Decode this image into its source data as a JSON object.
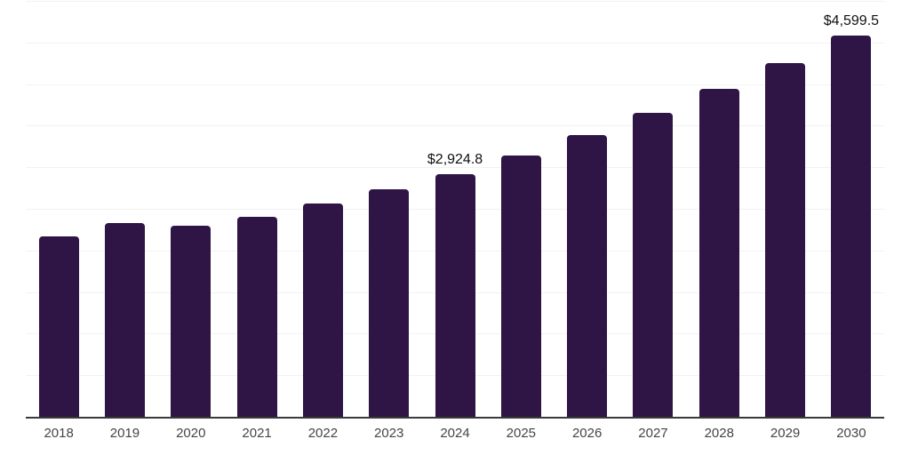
{
  "chart_data": {
    "type": "bar",
    "title": "",
    "xlabel": "",
    "ylabel": "",
    "categories": [
      "2018",
      "2019",
      "2020",
      "2021",
      "2022",
      "2023",
      "2024",
      "2025",
      "2026",
      "2027",
      "2028",
      "2029",
      "2030"
    ],
    "values": [
      2180,
      2340,
      2310,
      2415,
      2575,
      2745,
      2924.8,
      3150,
      3395,
      3665,
      3950,
      4265,
      4599.5
    ],
    "data_labels": [
      "",
      "",
      "",
      "",
      "",
      "",
      "$2,924.8",
      "",
      "",
      "",
      "",
      "",
      "$4,599.5"
    ],
    "ylim": [
      0,
      5000
    ],
    "gridline_step": 500,
    "grid": "horizontal",
    "legend": "none",
    "y_axis_labels_visible": false,
    "colors": {
      "bar": "#2f1446",
      "axis_line": "#3a3a3a",
      "gridline": "#f2f2f2",
      "tick_label": "#454545",
      "data_label": "#111111",
      "background": "#ffffff"
    }
  }
}
